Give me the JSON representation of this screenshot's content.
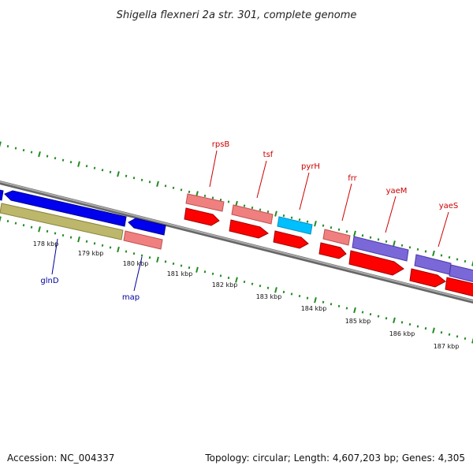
{
  "title": "Shigella flexneri 2a str. 301, complete genome",
  "footer": {
    "accession": "Accession: NC_004337",
    "summary": "Topology: circular; Length: 4,607,203 bp; Genes: 4,305"
  },
  "colors": {
    "backbone": "#8a8a8a",
    "ticks": "#228b22",
    "forward_label": "#cc0000",
    "reverse_label": "#000099",
    "rna": "#f08080",
    "cds_red": "#ff0000",
    "cds_blue": "#0000ee",
    "cds_purple": "#7b68d8",
    "cds_cyan": "#00bfff",
    "cds_olive": "#bdb76b"
  },
  "ticks": [
    "178 kbp",
    "179 kbp",
    "180 kbp",
    "181 kbp",
    "182 kbp",
    "183 kbp",
    "184 kbp",
    "185 kbp",
    "186 kbp",
    "187 kbp"
  ],
  "gene_labels": [
    {
      "name": "rpsB",
      "strand": "forward"
    },
    {
      "name": "tsf",
      "strand": "forward"
    },
    {
      "name": "pyrH",
      "strand": "forward"
    },
    {
      "name": "frr",
      "strand": "forward"
    },
    {
      "name": "yaeM",
      "strand": "forward"
    },
    {
      "name": "yaeS",
      "strand": "forward"
    },
    {
      "name": "glnD",
      "strand": "reverse"
    },
    {
      "name": "map",
      "strand": "reverse"
    }
  ]
}
